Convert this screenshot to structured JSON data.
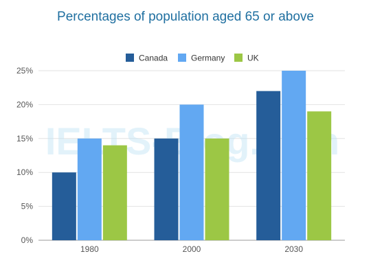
{
  "title": "Percentages of population aged 65 or above",
  "watermark": "IELTS-Blog.com",
  "chart_data": {
    "type": "bar",
    "title": "Percentages of population aged 65 or above",
    "xlabel": "",
    "ylabel": "",
    "categories": [
      "1980",
      "2000",
      "2030"
    ],
    "series": [
      {
        "name": "Canada",
        "values": [
          10,
          15,
          22
        ],
        "color": "#255d99"
      },
      {
        "name": "Germany",
        "values": [
          15,
          20,
          25
        ],
        "color": "#62a8f2"
      },
      {
        "name": "UK",
        "values": [
          14,
          15,
          19
        ],
        "color": "#9cc745"
      }
    ],
    "ylim": [
      0,
      25
    ],
    "yticks": [
      "0%",
      "5%",
      "10%",
      "15%",
      "20%",
      "25%"
    ],
    "legend": "top-center",
    "grid": true
  }
}
